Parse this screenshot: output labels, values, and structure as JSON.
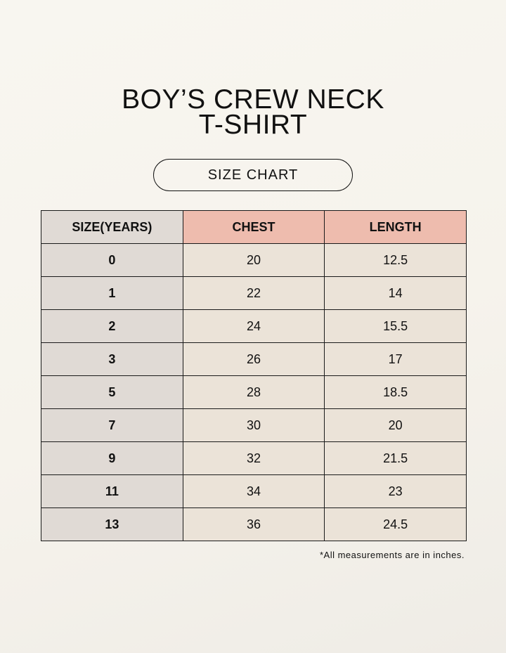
{
  "title_line1": "BOY’S CREW NECK",
  "title_line2": "T-SHIRT",
  "subtitle": "SIZE CHART",
  "table": {
    "headers": [
      "SIZE(YEARS)",
      "CHEST",
      "LENGTH"
    ],
    "rows": [
      [
        "0",
        "20",
        "12.5"
      ],
      [
        "1",
        "22",
        "14"
      ],
      [
        "2",
        "24",
        "15.5"
      ],
      [
        "3",
        "26",
        "17"
      ],
      [
        "5",
        "28",
        "18.5"
      ],
      [
        "7",
        "30",
        "20"
      ],
      [
        "9",
        "32",
        "21.5"
      ],
      [
        "11",
        "34",
        "23"
      ],
      [
        "13",
        "36",
        "24.5"
      ]
    ]
  },
  "note": "*All measurements are in inches.",
  "colors": {
    "size_column": "#e0dad5",
    "header_accent": "#eebcae",
    "cell": "#ebe3d8"
  }
}
